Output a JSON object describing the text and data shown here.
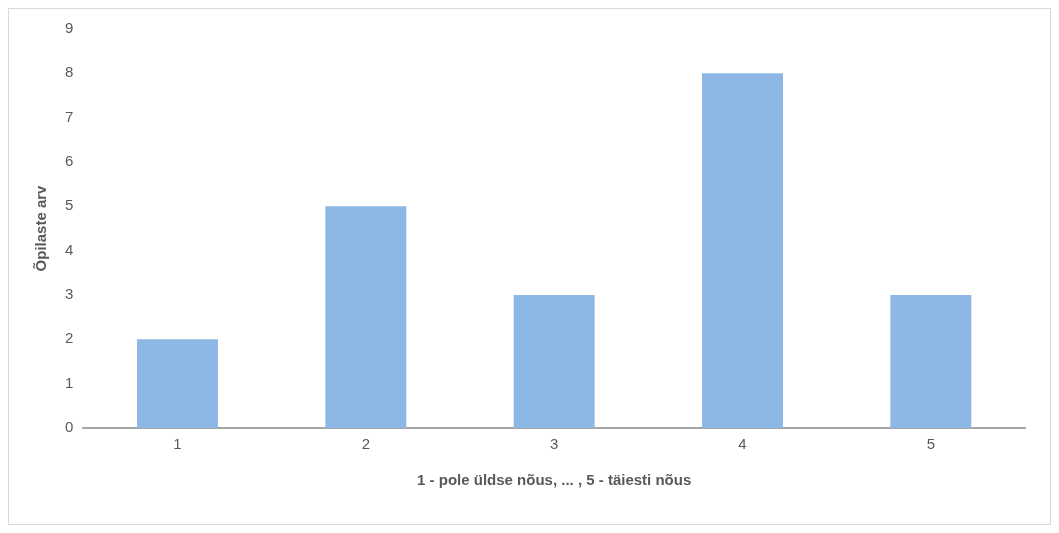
{
  "chart_data": {
    "type": "bar",
    "xlabel": "1 - pole üldse nõus, ... , 5 - täiesti nõus",
    "ylabel": "Õpilaste arv",
    "categories": [
      "1",
      "2",
      "3",
      "4",
      "5"
    ],
    "values": [
      2,
      5,
      3,
      8,
      3
    ],
    "color": "#8db8e6",
    "ylim": [
      0,
      9
    ],
    "yticks": [
      0,
      1,
      2,
      3,
      4,
      5,
      6,
      7,
      8,
      9
    ],
    "grid": false,
    "legend": false
  }
}
